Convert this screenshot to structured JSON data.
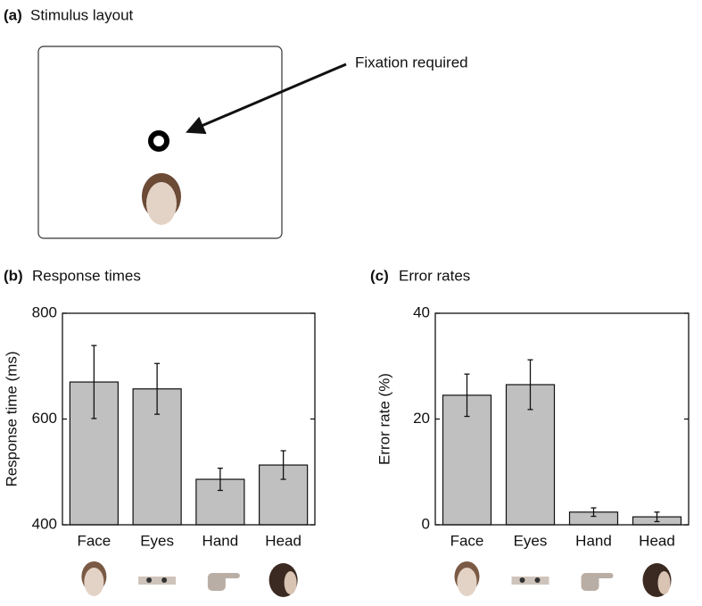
{
  "panel_a": {
    "label": "(a)",
    "title": "Stimulus layout",
    "annotation": "Fixation required"
  },
  "chart_data": [
    {
      "type": "bar",
      "panel_label": "(b)",
      "title": "Response times",
      "ylabel": "Response time (ms)",
      "categories": [
        "Face",
        "Eyes",
        "Hand",
        "Head"
      ],
      "values": [
        670,
        657,
        486,
        513
      ],
      "errors": [
        69,
        48,
        21,
        27
      ],
      "color": "#c0c0c0",
      "ylim": [
        400,
        800
      ],
      "yticks": [
        400,
        600,
        800
      ]
    },
    {
      "type": "bar",
      "panel_label": "(c)",
      "title": "Error rates",
      "ylabel": "Error rate (%)",
      "categories": [
        "Face",
        "Eyes",
        "Hand",
        "Head"
      ],
      "values": [
        24.5,
        26.5,
        2.4,
        1.5
      ],
      "errors": [
        4,
        4.7,
        0.8,
        0.9
      ],
      "color": "#c0c0c0",
      "ylim": [
        0,
        40
      ],
      "yticks": [
        0,
        20,
        40
      ]
    }
  ]
}
